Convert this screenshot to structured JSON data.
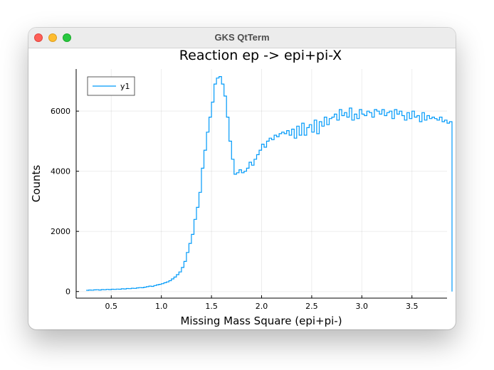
{
  "window": {
    "title": "GKS QtTerm"
  },
  "chart_data": {
    "type": "histogram",
    "title": "Reaction ep -> epi+pi-X",
    "xlabel": "Missing Mass Square (epi+pi-)",
    "ylabel": "Counts",
    "xlim": [
      0.15,
      3.85
    ],
    "ylim": [
      -220,
      7400
    ],
    "x_ticks": [
      0.5,
      1.0,
      1.5,
      2.0,
      2.5,
      3.0,
      3.5
    ],
    "x_tick_labels": [
      "0.5",
      "1.0",
      "1.5",
      "2.0",
      "2.5",
      "3.0",
      "3.5"
    ],
    "y_ticks": [
      0,
      2000,
      4000,
      6000
    ],
    "y_tick_labels": [
      "0",
      "2000",
      "4000",
      "6000"
    ],
    "grid": true,
    "legend_position": "top-left",
    "series_color": "#009af9",
    "series": [
      {
        "name": "y1",
        "bin_start": 0.25,
        "bin_width": 0.025,
        "values": [
          40,
          50,
          45,
          55,
          60,
          50,
          65,
          60,
          70,
          65,
          75,
          70,
          80,
          75,
          90,
          85,
          100,
          95,
          110,
          105,
          120,
          130,
          125,
          145,
          160,
          180,
          170,
          200,
          220,
          240,
          260,
          290,
          320,
          360,
          420,
          480,
          560,
          650,
          800,
          1000,
          1300,
          1600,
          1900,
          2400,
          2800,
          3300,
          4100,
          4700,
          5300,
          5800,
          6300,
          6900,
          7100,
          7150,
          6900,
          6500,
          5800,
          5000,
          4400,
          3900,
          3950,
          4050,
          3950,
          4000,
          4100,
          4300,
          4200,
          4400,
          4550,
          4700,
          4900,
          4800,
          5000,
          5100,
          5050,
          5200,
          5150,
          5250,
          5300,
          5250,
          5350,
          5200,
          5400,
          5100,
          5500,
          5200,
          5600,
          5200,
          5450,
          5550,
          5300,
          5700,
          5250,
          5650,
          5500,
          5800,
          5550,
          5750,
          5800,
          5900,
          5700,
          6050,
          5850,
          5950,
          5800,
          6100,
          5700,
          5900,
          5750,
          6050,
          5900,
          5850,
          6000,
          5950,
          5800,
          6050,
          6000,
          5900,
          6050,
          5850,
          5950,
          6000,
          5750,
          6050,
          5900,
          6000,
          5850,
          5700,
          5950,
          5750,
          6000,
          5800,
          5850,
          5650,
          5950,
          5700,
          5850,
          5750,
          5800,
          5750,
          5700,
          5800,
          5650,
          5700,
          5600,
          5650,
          0
        ]
      }
    ]
  }
}
